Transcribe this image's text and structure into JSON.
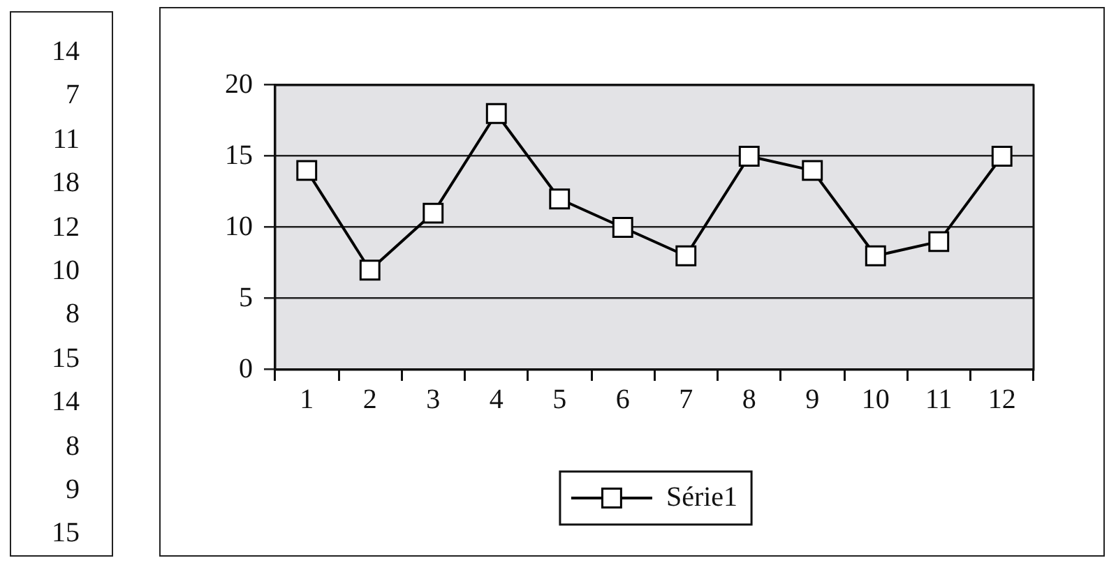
{
  "chart_data": [
    {
      "type": "other",
      "annotations": [
        "14",
        "7",
        "11",
        "18",
        "12",
        "10",
        "8",
        "15",
        "14",
        "8",
        "9",
        "15"
      ]
    },
    {
      "type": "line",
      "categories": [
        "1",
        "2",
        "3",
        "4",
        "5",
        "6",
        "7",
        "8",
        "9",
        "10",
        "11",
        "12"
      ],
      "series": [
        {
          "name": "Série1",
          "color": "#000000",
          "values": [
            14,
            7,
            11,
            18,
            12,
            10,
            8,
            15,
            14,
            8,
            9,
            15
          ]
        }
      ],
      "ylim": [
        0,
        20
      ],
      "yticks": [
        0,
        5,
        10,
        15,
        20
      ],
      "grid": "y",
      "legend": "bottom",
      "marker": "square",
      "line_style": "solid"
    }
  ]
}
